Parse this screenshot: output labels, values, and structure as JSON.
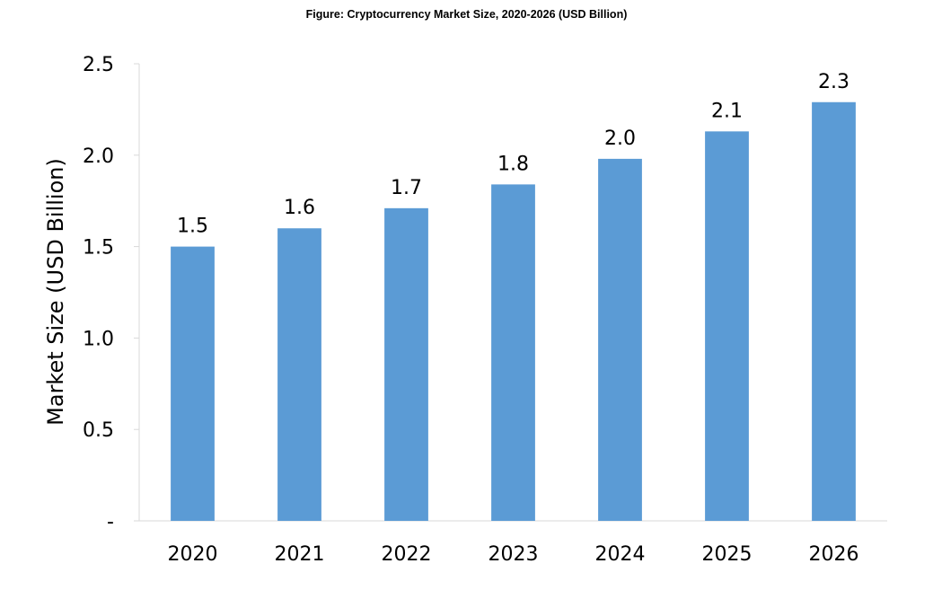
{
  "chart_data": {
    "type": "bar",
    "title": "Figure: Cryptocurrency Market Size, 2020-2026 (USD Billion)",
    "ylabel": "Market Size (USD Billion)",
    "xlabel": "",
    "categories": [
      "2020",
      "2021",
      "2022",
      "2023",
      "2024",
      "2025",
      "2026"
    ],
    "values": [
      1.5,
      1.6,
      1.71,
      1.84,
      1.98,
      2.13,
      2.29
    ],
    "data_labels": [
      "1.5",
      "1.6",
      "1.7",
      "1.8",
      "2.0",
      "2.1",
      "2.3"
    ],
    "ylim": [
      0,
      2.5
    ],
    "yticks": [
      0,
      0.5,
      1.0,
      1.5,
      2.0,
      2.5
    ],
    "ytick_labels": [
      "-",
      "0.5",
      "1.0",
      "1.5",
      "2.0",
      "2.5"
    ],
    "bar_color": "#5b9bd5",
    "axis_color": "#d9d9d9",
    "grid": false,
    "legend": "none"
  }
}
